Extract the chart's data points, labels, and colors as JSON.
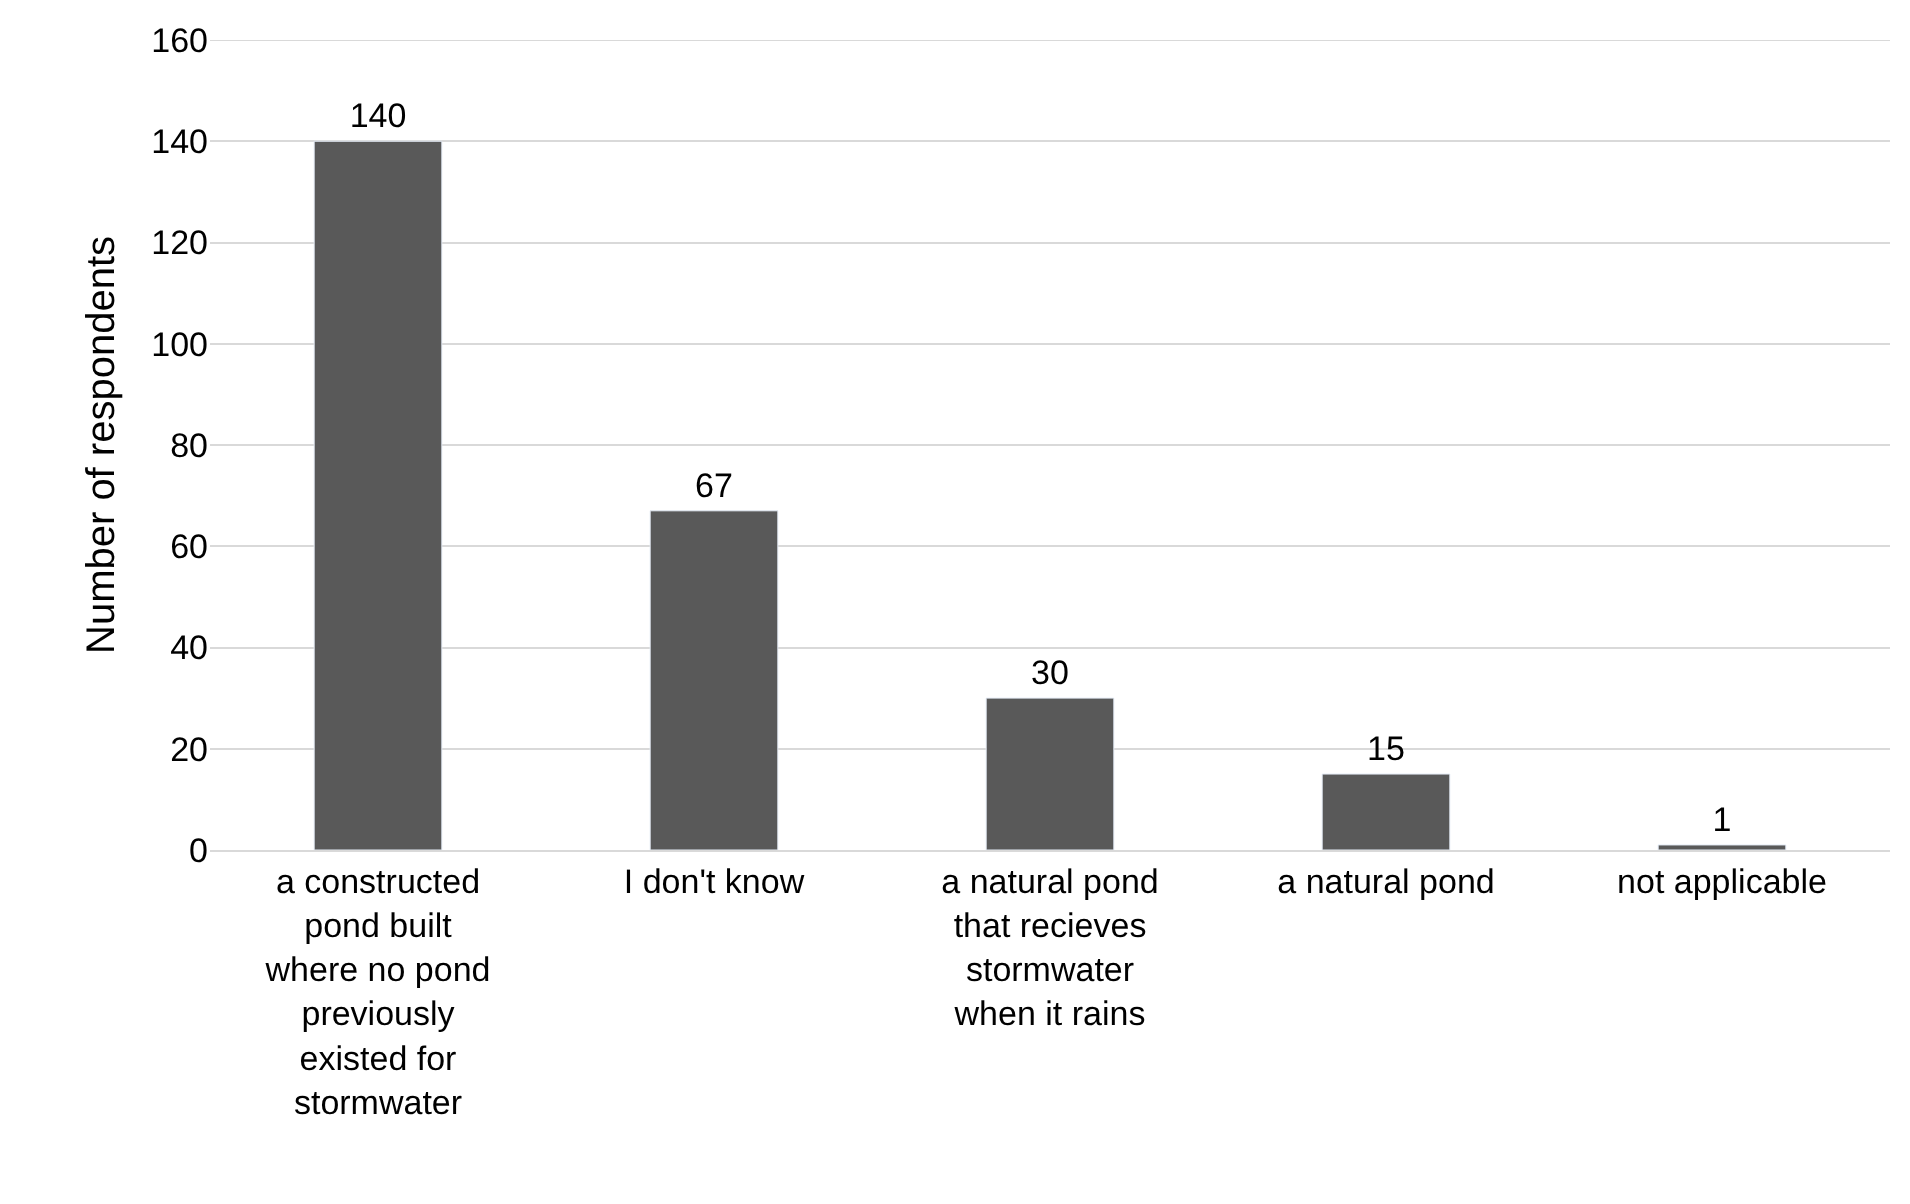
{
  "chart_data": {
    "type": "bar",
    "ylabel": "Number of respondents",
    "categories": [
      "a constructed pond built where no pond previously existed for stormwater",
      "I don't know",
      "a natural pond that recieves stormwater when it rains",
      "a natural pond",
      "not applicable"
    ],
    "values": [
      140,
      67,
      30,
      15,
      1
    ],
    "color": "#595959",
    "ylim": [
      0,
      160
    ],
    "yticks": [
      0,
      20,
      40,
      60,
      80,
      100,
      120,
      140,
      160
    ],
    "grid": "y",
    "data_labels": true
  }
}
